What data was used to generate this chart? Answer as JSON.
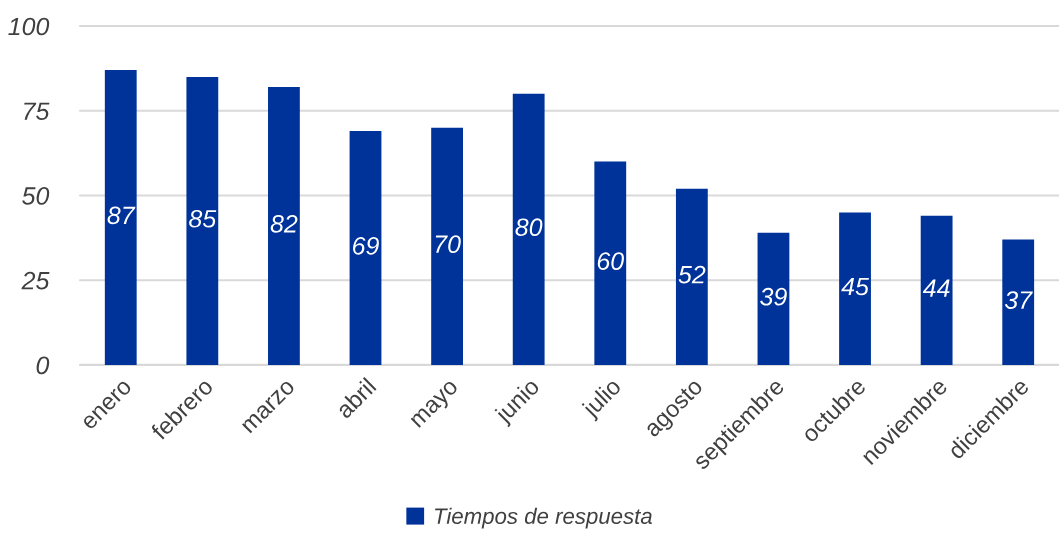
{
  "chart_data": {
    "type": "bar",
    "categories": [
      "enero",
      "febrero",
      "marzo",
      "abril",
      "mayo",
      "junio",
      "julio",
      "agosto",
      "septiembre",
      "octubre",
      "noviembre",
      "diciembre"
    ],
    "series": [
      {
        "name": "Tiempos de respuesta",
        "color": "#00339a",
        "values": [
          87,
          85,
          82,
          69,
          70,
          80,
          60,
          52,
          39,
          45,
          44,
          37
        ]
      }
    ],
    "ylim": [
      0,
      100
    ],
    "yticks": [
      0,
      25,
      50,
      75,
      100
    ],
    "grid": "y",
    "legend": "bottom",
    "data_labels": true
  }
}
